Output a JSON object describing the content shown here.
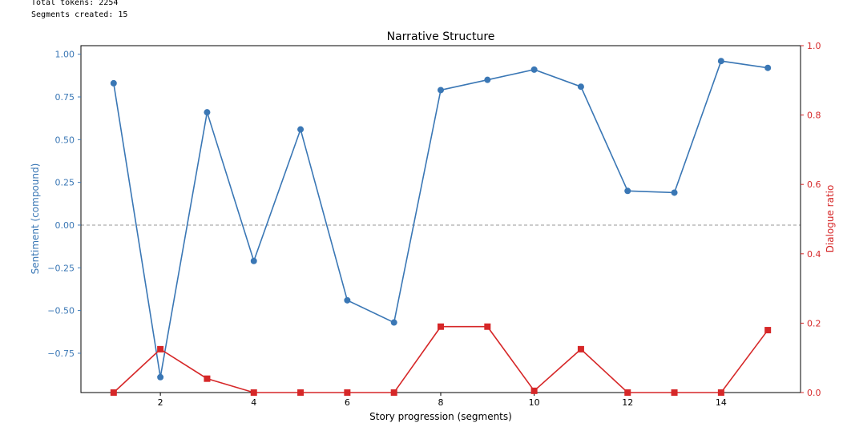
{
  "console": {
    "line1": "Total tokens: 2254",
    "line2": "Segments created: 15"
  },
  "chart_data": {
    "type": "line",
    "title": "Narrative Structure",
    "xlabel": "Story progression (segments)",
    "ylabel_left": "Sentiment (compound)",
    "ylabel_right": "Dialogue ratio",
    "x": [
      1,
      2,
      3,
      4,
      5,
      6,
      7,
      8,
      9,
      10,
      11,
      12,
      13,
      14,
      15
    ],
    "xlim": [
      0.3,
      15.7
    ],
    "x_ticks": [
      2,
      4,
      6,
      8,
      10,
      12,
      14
    ],
    "x_tick_labels": [
      "2",
      "4",
      "6",
      "8",
      "10",
      "12",
      "14"
    ],
    "left_axis": {
      "ylim": [
        -0.98,
        1.05
      ],
      "ticks": [
        -0.75,
        -0.5,
        -0.25,
        0,
        0.25,
        0.5,
        0.75,
        1.0
      ],
      "tick_labels": [
        "−0.75",
        "−0.50",
        "−0.25",
        "0.00",
        "0.25",
        "0.50",
        "0.75",
        "1.00"
      ],
      "color": "#3a77b5"
    },
    "right_axis": {
      "ylim": [
        0,
        1.0
      ],
      "ticks": [
        0,
        0.2,
        0.4,
        0.6,
        0.8,
        1.0
      ],
      "tick_labels": [
        "0.0",
        "0.2",
        "0.4",
        "0.6",
        "0.8",
        "1.0"
      ],
      "color": "#d62728"
    },
    "series": [
      {
        "axis": "left",
        "color": "#3a77b5",
        "marker": "circle",
        "values": [
          0.83,
          -0.89,
          0.66,
          -0.21,
          0.56,
          -0.44,
          -0.57,
          0.79,
          0.85,
          0.91,
          0.81,
          0.2,
          0.19,
          0.96,
          0.92
        ]
      },
      {
        "axis": "right",
        "color": "#d62728",
        "marker": "square",
        "values": [
          0.0,
          0.125,
          0.04,
          0.0,
          0.0,
          0.0,
          0.0,
          0.19,
          0.19,
          0.005,
          0.125,
          0.0,
          0.0,
          0.0,
          0.18
        ]
      }
    ],
    "reference_line": {
      "y": 0,
      "style": "dashed",
      "color": "#999999"
    },
    "grid": false
  }
}
